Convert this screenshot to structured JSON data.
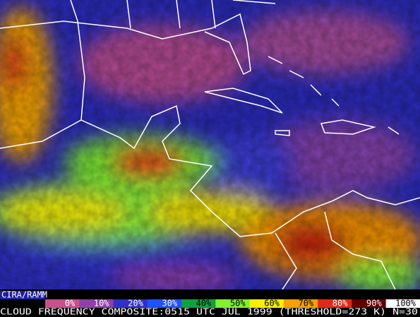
{
  "credit": "CIRA/RAMM",
  "legend": {
    "items": [
      {
        "label": "0%",
        "color": "#c8508c"
      },
      {
        "label": "10%",
        "color": "#9040a8"
      },
      {
        "label": "20%",
        "color": "#3030c8"
      },
      {
        "label": "30%",
        "color": "#2050ff"
      },
      {
        "label": "40%",
        "color": "#10a040"
      },
      {
        "label": "50%",
        "color": "#80f030"
      },
      {
        "label": "60%",
        "color": "#f8f000"
      },
      {
        "label": "70%",
        "color": "#f8a000"
      },
      {
        "label": "80%",
        "color": "#e02818"
      },
      {
        "label": "90%",
        "color": "#600000"
      },
      {
        "label": "100%",
        "color": "#ffffff"
      }
    ]
  },
  "caption": "CLOUD FREQUENCY COMPOSITE:0515 UTC JUL 1999 (THRESHOLD=273 K) N=30"
}
